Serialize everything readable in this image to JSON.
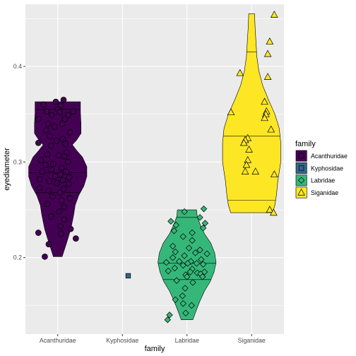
{
  "chart_data": {
    "type": "violin",
    "xlabel": "family",
    "ylabel": "eyediameter",
    "categories": [
      "Acanthuridae",
      "Kyphosidae",
      "Labridae",
      "Siganidae"
    ],
    "ylim": [
      0.12,
      0.465
    ],
    "yticks": [
      0.2,
      0.3,
      0.4
    ],
    "ytick_labels": [
      "0.2",
      "0.3",
      "0.4"
    ],
    "grid": true,
    "legend": {
      "title": "family",
      "position": "right",
      "entries": [
        "Acanthuridae",
        "Kyphosidae",
        "Labridae",
        "Siganidae"
      ]
    },
    "colors": {
      "Acanthuridae": "#440154",
      "Kyphosidae": "#31688e",
      "Labridae": "#35b779",
      "Siganidae": "#fde725"
    },
    "shapes": {
      "Acanthuridae": "circle",
      "Kyphosidae": "square",
      "Labridae": "diamond",
      "Siganidae": "triangle"
    },
    "violins": [
      {
        "family": "Acanthuridae",
        "min": 0.201,
        "max": 0.363,
        "quantiles": [
          0.268,
          0.289,
          0.355
        ],
        "profile": [
          [
            0.201,
            0.15
          ],
          [
            0.215,
            0.3
          ],
          [
            0.23,
            0.45
          ],
          [
            0.245,
            0.55
          ],
          [
            0.255,
            0.6
          ],
          [
            0.265,
            0.72
          ],
          [
            0.275,
            0.9
          ],
          [
            0.285,
            1.0
          ],
          [
            0.295,
            1.0
          ],
          [
            0.305,
            0.85
          ],
          [
            0.312,
            0.65
          ],
          [
            0.318,
            0.5
          ],
          [
            0.323,
            0.65
          ],
          [
            0.33,
            0.8
          ],
          [
            0.34,
            0.8
          ],
          [
            0.352,
            0.78
          ],
          [
            0.363,
            0.78
          ]
        ]
      },
      {
        "family": "Labridae",
        "min": 0.135,
        "max": 0.25,
        "quantiles": [
          0.177,
          0.194,
          0.242
        ],
        "profile": [
          [
            0.135,
            0.2
          ],
          [
            0.145,
            0.32
          ],
          [
            0.155,
            0.45
          ],
          [
            0.165,
            0.6
          ],
          [
            0.175,
            0.8
          ],
          [
            0.185,
            0.93
          ],
          [
            0.195,
            1.0
          ],
          [
            0.205,
            0.95
          ],
          [
            0.215,
            0.82
          ],
          [
            0.225,
            0.6
          ],
          [
            0.235,
            0.45
          ],
          [
            0.243,
            0.35
          ],
          [
            0.25,
            0.33
          ]
        ]
      },
      {
        "family": "Siganidae",
        "min": 0.247,
        "max": 0.455,
        "quantiles": [
          0.26,
          0.327,
          0.415
        ],
        "profile": [
          [
            0.247,
            0.72
          ],
          [
            0.255,
            0.8
          ],
          [
            0.265,
            0.85
          ],
          [
            0.28,
            0.9
          ],
          [
            0.3,
            1.0
          ],
          [
            0.32,
            1.0
          ],
          [
            0.335,
            0.95
          ],
          [
            0.35,
            0.8
          ],
          [
            0.365,
            0.58
          ],
          [
            0.38,
            0.38
          ],
          [
            0.395,
            0.25
          ],
          [
            0.41,
            0.18
          ],
          [
            0.425,
            0.15
          ],
          [
            0.44,
            0.12
          ],
          [
            0.455,
            0.1
          ]
        ]
      }
    ],
    "points": {
      "Acanthuridae": [
        [
          0.09,
          0.365
        ],
        [
          -0.03,
          0.363
        ],
        [
          -0.22,
          0.36
        ],
        [
          0.05,
          0.359
        ],
        [
          0.0,
          0.355
        ],
        [
          -0.17,
          0.353
        ],
        [
          0.24,
          0.353
        ],
        [
          0.03,
          0.352
        ],
        [
          -0.09,
          0.349
        ],
        [
          0.16,
          0.349
        ],
        [
          -0.3,
          0.345
        ],
        [
          0.11,
          0.345
        ],
        [
          -0.15,
          0.34
        ],
        [
          0.07,
          0.34
        ],
        [
          -0.05,
          0.337
        ],
        [
          -0.18,
          0.333
        ],
        [
          0.19,
          0.331
        ],
        [
          -0.12,
          0.327
        ],
        [
          0.08,
          0.324
        ],
        [
          -0.02,
          0.322
        ],
        [
          -0.3,
          0.32
        ],
        [
          0.12,
          0.319
        ],
        [
          -0.1,
          0.317
        ],
        [
          0.14,
          0.31
        ],
        [
          -0.16,
          0.308
        ],
        [
          0.02,
          0.307
        ],
        [
          0.1,
          0.306
        ],
        [
          -0.26,
          0.302
        ],
        [
          0.16,
          0.3
        ],
        [
          -0.07,
          0.298
        ],
        [
          -0.19,
          0.297
        ],
        [
          0.06,
          0.294
        ],
        [
          -0.1,
          0.292
        ],
        [
          0.13,
          0.29
        ],
        [
          -0.24,
          0.29
        ],
        [
          0.04,
          0.287
        ],
        [
          -0.04,
          0.285
        ],
        [
          0.18,
          0.284
        ],
        [
          -0.28,
          0.282
        ],
        [
          0.08,
          0.281
        ],
        [
          -0.13,
          0.28
        ],
        [
          -0.01,
          0.278
        ],
        [
          0.17,
          0.277
        ],
        [
          -0.28,
          0.273
        ],
        [
          0.09,
          0.272
        ],
        [
          -0.14,
          0.27
        ],
        [
          0.03,
          0.268
        ],
        [
          -0.08,
          0.264
        ],
        [
          0.19,
          0.262
        ],
        [
          0.06,
          0.26
        ],
        [
          -0.16,
          0.256
        ],
        [
          0.1,
          0.253
        ],
        [
          0.02,
          0.248
        ],
        [
          -0.1,
          0.243
        ],
        [
          0.1,
          0.24
        ],
        [
          0.04,
          0.233
        ],
        [
          0.2,
          0.23
        ],
        [
          -0.3,
          0.226
        ],
        [
          0.05,
          0.225
        ],
        [
          0.28,
          0.22
        ],
        [
          -0.14,
          0.214
        ],
        [
          -0.2,
          0.201
        ]
      ],
      "Kyphosidae": [
        [
          0.09,
          0.181
        ]
      ],
      "Labridae": [
        [
          0.26,
          0.251
        ],
        [
          -0.04,
          0.248
        ],
        [
          0.2,
          0.242
        ],
        [
          -0.25,
          0.238
        ],
        [
          0.28,
          0.236
        ],
        [
          -0.17,
          0.234
        ],
        [
          0.25,
          0.231
        ],
        [
          -0.2,
          0.228
        ],
        [
          0.08,
          0.226
        ],
        [
          -0.06,
          0.222
        ],
        [
          0.08,
          0.218
        ],
        [
          -0.22,
          0.212
        ],
        [
          0.03,
          0.21
        ],
        [
          0.2,
          0.208
        ],
        [
          -0.18,
          0.206
        ],
        [
          0.13,
          0.205
        ],
        [
          0.31,
          0.204
        ],
        [
          -0.04,
          0.202
        ],
        [
          -0.22,
          0.2
        ],
        [
          0.22,
          0.198
        ],
        [
          0.06,
          0.196
        ],
        [
          -0.12,
          0.196
        ],
        [
          -0.32,
          0.195
        ],
        [
          0.01,
          0.194
        ],
        [
          0.15,
          0.194
        ],
        [
          0.25,
          0.193
        ],
        [
          -0.06,
          0.192
        ],
        [
          -0.19,
          0.189
        ],
        [
          0.08,
          0.188
        ],
        [
          -0.29,
          0.186
        ],
        [
          0.27,
          0.185
        ],
        [
          0.05,
          0.185
        ],
        [
          0.16,
          0.184
        ],
        [
          0.21,
          0.183
        ],
        [
          -0.02,
          0.182
        ],
        [
          0.0,
          0.18
        ],
        [
          0.24,
          0.18
        ],
        [
          -0.16,
          0.176
        ],
        [
          0.09,
          0.174
        ],
        [
          -0.03,
          0.168
        ],
        [
          -0.07,
          0.16
        ],
        [
          -0.18,
          0.156
        ],
        [
          -0.06,
          0.152
        ],
        [
          0.07,
          0.15
        ],
        [
          -0.02,
          0.142
        ],
        [
          -0.27,
          0.14
        ],
        [
          -0.3,
          0.135
        ]
      ],
      "Siganidae": [
        [
          0.35,
          0.454
        ],
        [
          0.28,
          0.426
        ],
        [
          0.25,
          0.413
        ],
        [
          -0.18,
          0.393
        ],
        [
          0.25,
          0.389
        ],
        [
          0.2,
          0.363
        ],
        [
          0.23,
          0.353
        ],
        [
          0.22,
          0.35
        ],
        [
          0.2,
          0.346
        ],
        [
          -0.32,
          0.352
        ],
        [
          0.3,
          0.334
        ],
        [
          -0.06,
          0.325
        ],
        [
          -0.1,
          0.323
        ],
        [
          -0.12,
          0.32
        ],
        [
          -0.04,
          0.313
        ],
        [
          -0.06,
          0.302
        ],
        [
          0.06,
          0.29
        ],
        [
          -0.1,
          0.29
        ],
        [
          -0.08,
          0.297
        ],
        [
          0.35,
          0.287
        ],
        [
          0.28,
          0.25
        ],
        [
          0.34,
          0.247
        ]
      ]
    }
  }
}
